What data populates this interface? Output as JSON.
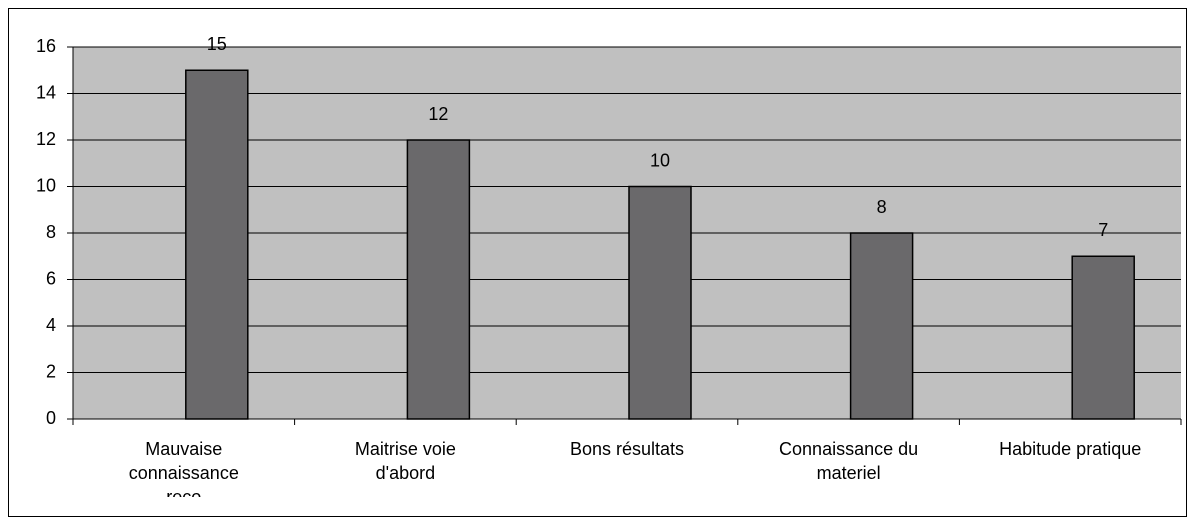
{
  "chart_data": {
    "type": "bar",
    "categories": [
      "Mauvaise connaissance reco",
      "Maitrise voie d'abord",
      "Bons résultats",
      "Connaissance du materiel",
      "Habitude pratique"
    ],
    "values": [
      15,
      12,
      10,
      8,
      7
    ],
    "color": "#6a696b",
    "plot_background": "#c0c0c0",
    "ylim": [
      0,
      16
    ],
    "yticks": [
      0,
      2,
      4,
      6,
      8,
      10,
      12,
      14,
      16
    ],
    "grid": true
  }
}
